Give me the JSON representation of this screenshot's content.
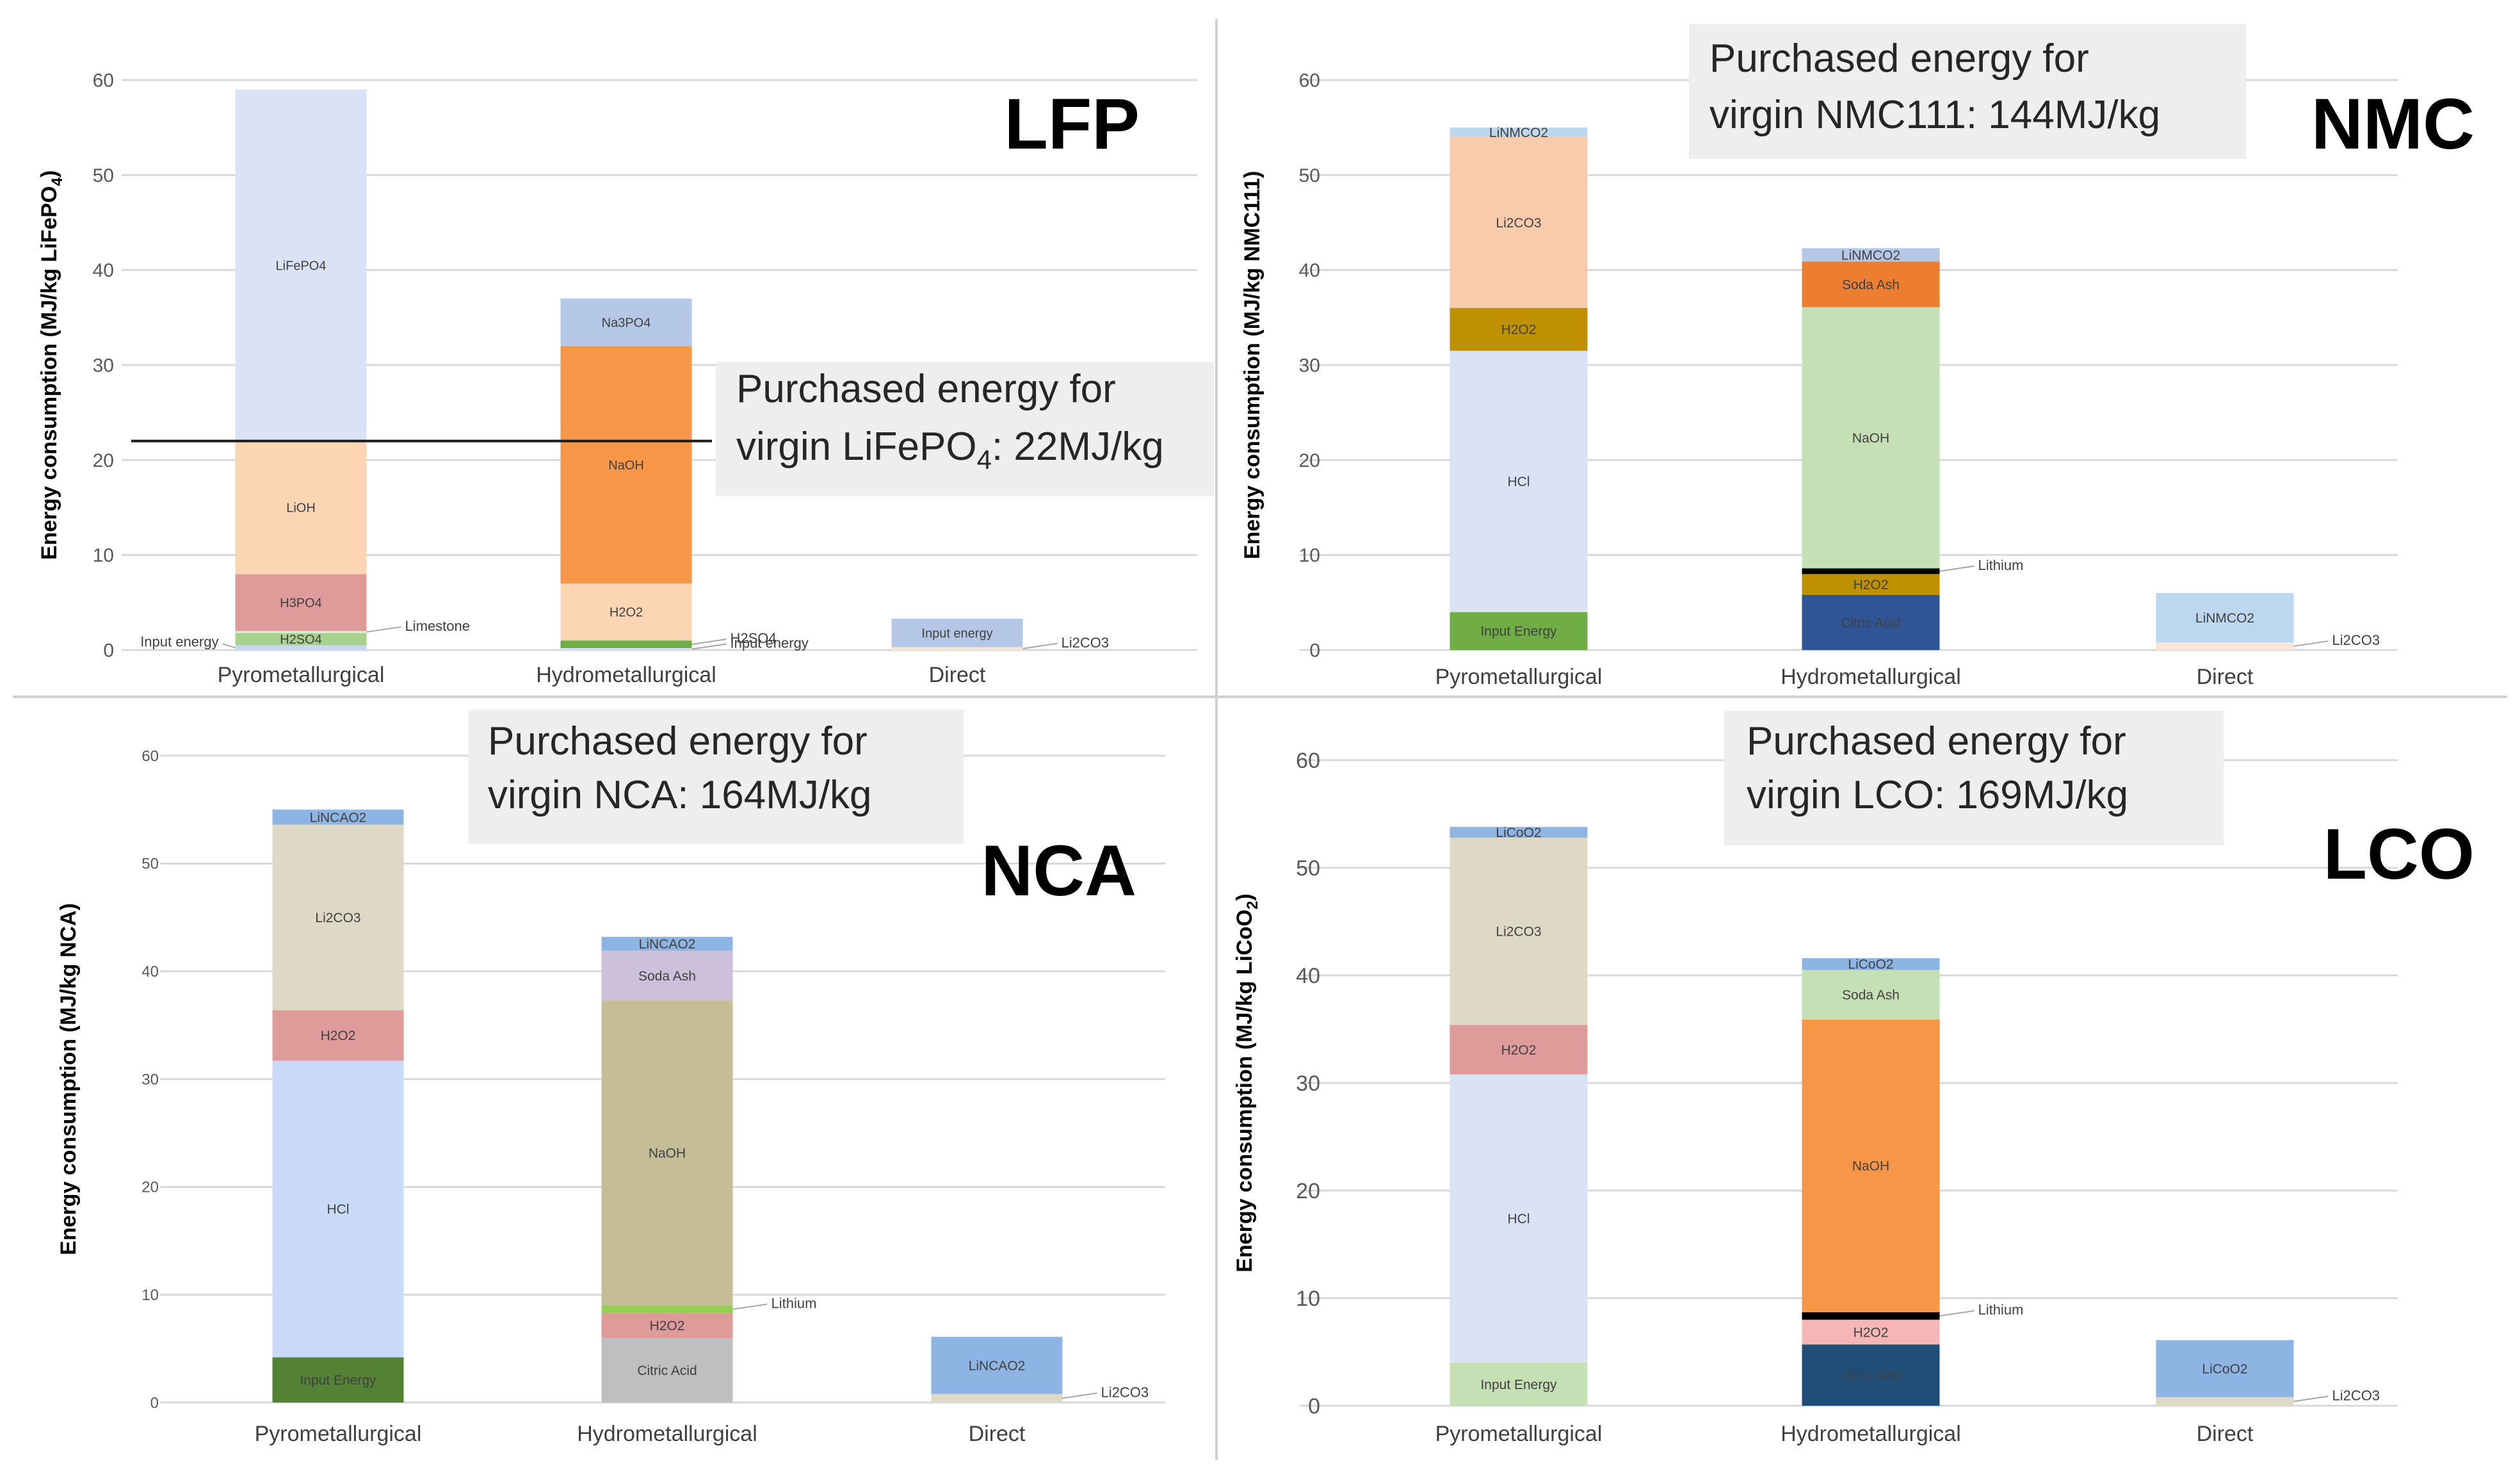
{
  "chart_data": [
    {
      "type": "bar",
      "stacked": true,
      "title": "LFP",
      "ylabel": "Energy consumption (MJ/kg LiFePO4)",
      "ylabel_base": "Energy consumption (MJ/kg LiFePO",
      "ylabel_sub": "4",
      "ylabel_end": ")",
      "ylim": [
        0,
        60
      ],
      "yticks": [
        "0",
        "10",
        "20",
        "30",
        "40",
        "50",
        "60"
      ],
      "categories": [
        "Pyrometallurgical",
        "Hydrometallurgical",
        "Direct"
      ],
      "bars": [
        [
          {
            "name": "Input energy",
            "value": 0.5,
            "color": "#c8d8f0",
            "label": "outside"
          },
          {
            "name": "H2SO4",
            "value": 1.3,
            "color": "#a9d18e",
            "label": "inside"
          },
          {
            "name": "Limestone",
            "value": 0.2,
            "color": "#e2efda",
            "label": "outside"
          },
          {
            "name": "H3PO4",
            "value": 6.0,
            "color": "#df9a9a",
            "label": "inside"
          },
          {
            "name": "LiOH",
            "value": 14.0,
            "color": "#fcd5b5",
            "label": "inside"
          },
          {
            "name": "LiFePO4",
            "value": 37.0,
            "color": "#dae3f3",
            "label": "inside"
          }
        ],
        [
          {
            "name": "Input energy",
            "value": 0.2,
            "color": "#dae3f3",
            "label": "outside"
          },
          {
            "name": "H2SO4",
            "value": 0.8,
            "color": "#70ad47",
            "label": "outside"
          },
          {
            "name": "H2O2",
            "value": 6.0,
            "color": "#fcd5b5",
            "label": "inside"
          },
          {
            "name": "NaOH",
            "value": 25.0,
            "color": "#f79646",
            "label": "inside"
          },
          {
            "name": "Na3PO4",
            "value": 5.0,
            "color": "#b4c7e7",
            "label": "inside"
          }
        ],
        [
          {
            "name": "Li2CO3",
            "value": 0.3,
            "color": "#fbe5d6",
            "label": "outside"
          },
          {
            "name": "Input energy",
            "value": 3.0,
            "color": "#b4c7e7",
            "label": "inside"
          }
        ]
      ],
      "reference_line": 22,
      "note_line1": "Purchased energy for",
      "note_line2_base": "virgin LiFePO",
      "note_line2_sub": "4",
      "note_line2_end": ": 22MJ/kg"
    },
    {
      "type": "bar",
      "stacked": true,
      "title": "NMC",
      "ylabel": "Energy consumption (MJ/kg NMC111)",
      "ylim": [
        0,
        60
      ],
      "yticks": [
        "0",
        "10",
        "20",
        "30",
        "40",
        "50",
        "60"
      ],
      "categories": [
        "Pyrometallurgical",
        "Hydrometallurgical",
        "Direct"
      ],
      "bars": [
        [
          {
            "name": "Input Energy",
            "value": 4.0,
            "color": "#70ad47",
            "label": "inside"
          },
          {
            "name": "HCl",
            "value": 27.5,
            "color": "#dae3f3",
            "label": "inside"
          },
          {
            "name": "H2O2",
            "value": 4.5,
            "color": "#bf9000",
            "label": "inside"
          },
          {
            "name": "Li2CO3",
            "value": 18.0,
            "color": "#f8cbad",
            "label": "inside"
          },
          {
            "name": "LiNMCO2",
            "value": 1.0,
            "color": "#bdd7ee",
            "label": "inside"
          }
        ],
        [
          {
            "name": "Citric Acid",
            "value": 5.8,
            "color": "#2f5597",
            "label": "inside"
          },
          {
            "name": "H2O2",
            "value": 2.2,
            "color": "#bf9000",
            "label": "inside"
          },
          {
            "name": "Lithium",
            "value": 0.6,
            "color": "#000000",
            "label": "outside"
          },
          {
            "name": "NaOH",
            "value": 27.5,
            "color": "#c5e0b4",
            "label": "inside"
          },
          {
            "name": "Soda Ash",
            "value": 4.8,
            "color": "#ed7d31",
            "label": "inside"
          },
          {
            "name": "LiNMCO2",
            "value": 1.4,
            "color": "#b4c7e7",
            "label": "inside"
          }
        ],
        [
          {
            "name": "Li2CO3",
            "value": 0.8,
            "color": "#fbe5d6",
            "label": "outside"
          },
          {
            "name": "LiNMCO2",
            "value": 5.2,
            "color": "#bdd7ee",
            "label": "inside"
          }
        ]
      ],
      "note_line1": "Purchased energy for",
      "note_line2": "virgin NMC111: 144MJ/kg"
    },
    {
      "type": "bar",
      "stacked": true,
      "title": "NCA",
      "ylabel": "Energy consumption (MJ/kg NCA)",
      "ylim": [
        0,
        60
      ],
      "yticks": [
        "0",
        "10",
        "20",
        "30",
        "40",
        "50",
        "60"
      ],
      "categories": [
        "Pyrometallurgical",
        "Hydrometallurgical",
        "Direct"
      ],
      "bars": [
        [
          {
            "name": "Input Energy",
            "value": 4.2,
            "color": "#548235",
            "label": "inside"
          },
          {
            "name": "HCl",
            "value": 27.5,
            "color": "#c9daf8",
            "label": "inside"
          },
          {
            "name": "H2O2",
            "value": 4.7,
            "color": "#df9a9a",
            "label": "inside"
          },
          {
            "name": "Li2CO3",
            "value": 17.2,
            "color": "#ddd9c4",
            "label": "inside"
          },
          {
            "name": "LiNCAO2",
            "value": 1.4,
            "color": "#8eb4e3",
            "label": "inside"
          }
        ],
        [
          {
            "name": "Citric Acid",
            "value": 6.0,
            "color": "#bfbfbf",
            "label": "inside"
          },
          {
            "name": "H2O2",
            "value": 2.3,
            "color": "#df9a9a",
            "label": "inside"
          },
          {
            "name": "Lithium",
            "value": 0.7,
            "color": "#92d050",
            "label": "outside"
          },
          {
            "name": "NaOH",
            "value": 28.3,
            "color": "#c4bd97",
            "label": "inside"
          },
          {
            "name": "Soda Ash",
            "value": 4.6,
            "color": "#ccc0da",
            "label": "inside"
          },
          {
            "name": "LiNCAO2",
            "value": 1.3,
            "color": "#8eb4e3",
            "label": "inside"
          }
        ],
        [
          {
            "name": "Li2CO3",
            "value": 0.8,
            "color": "#ddd9c4",
            "label": "outside"
          },
          {
            "name": "LiNCAO2",
            "value": 5.3,
            "color": "#8eb4e3",
            "label": "inside"
          }
        ]
      ],
      "note_line1": "Purchased energy for",
      "note_line2": "virgin NCA: 164MJ/kg"
    },
    {
      "type": "bar",
      "stacked": true,
      "title": "LCO",
      "ylabel": "Energy consumption (MJ/kg LiCoO2)",
      "ylabel_base": "Energy consumption (MJ/kg LiCoO",
      "ylabel_sub": "2",
      "ylabel_end": ")",
      "ylim": [
        0,
        60
      ],
      "yticks": [
        "0",
        "10",
        "20",
        "30",
        "40",
        "50",
        "60"
      ],
      "categories": [
        "Pyrometallurgical",
        "Hydrometallurgical",
        "Direct"
      ],
      "bars": [
        [
          {
            "name": "Input Energy",
            "value": 4.0,
            "color": "#c5e0b4",
            "label": "inside"
          },
          {
            "name": "HCl",
            "value": 26.8,
            "color": "#dae3f3",
            "label": "inside"
          },
          {
            "name": "H2O2",
            "value": 4.6,
            "color": "#df9a9a",
            "label": "inside"
          },
          {
            "name": "Li2CO3",
            "value": 17.4,
            "color": "#ddd9c4",
            "label": "inside"
          },
          {
            "name": "LiCoO2",
            "value": 1.0,
            "color": "#8eb4e3",
            "label": "inside"
          }
        ],
        [
          {
            "name": "Citric Acid",
            "value": 5.7,
            "color": "#1f4e79",
            "label": "inside"
          },
          {
            "name": "H2O2",
            "value": 2.3,
            "color": "#f4b6b6",
            "label": "inside"
          },
          {
            "name": "Lithium",
            "value": 0.7,
            "color": "#000000",
            "label": "outside"
          },
          {
            "name": "NaOH",
            "value": 27.2,
            "color": "#f79646",
            "label": "inside"
          },
          {
            "name": "Soda Ash",
            "value": 4.6,
            "color": "#c5e0b4",
            "label": "inside"
          },
          {
            "name": "LiCoO2",
            "value": 1.1,
            "color": "#8eb4e3",
            "label": "inside"
          }
        ],
        [
          {
            "name": "Li2CO3",
            "value": 0.8,
            "color": "#ddd9c4",
            "label": "outside"
          },
          {
            "name": "LiCoO2",
            "value": 5.3,
            "color": "#8eb4e3",
            "label": "inside"
          }
        ]
      ],
      "note_line1": "Purchased energy for",
      "note_line2": "virgin LCO: 169MJ/kg"
    }
  ]
}
